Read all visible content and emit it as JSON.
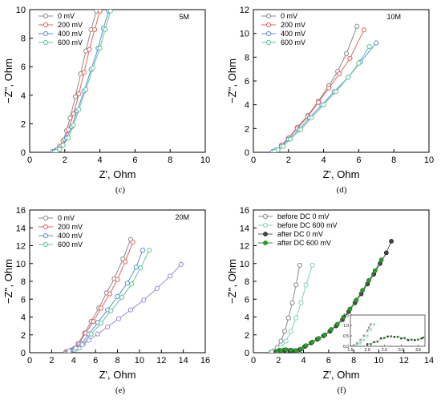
{
  "chart_data": [
    {
      "type": "line",
      "caption": "(c)",
      "annotation": "5M",
      "xlabel": "Z', Ohm",
      "ylabel": "−Z'', Ohm",
      "xlim": [
        0,
        10
      ],
      "ylim": [
        0,
        10
      ],
      "xticks": [
        "0",
        "2",
        "4",
        "6",
        "8",
        "10"
      ],
      "yticks": [
        "0",
        "2",
        "4",
        "6",
        "8",
        "10"
      ],
      "legend_position": "top-left",
      "series": [
        {
          "name": "0 mV",
          "color": "#8a8a8a",
          "marker": "open-circle",
          "x": [
            1.3,
            1.5,
            1.7,
            1.9,
            2.1,
            2.3,
            2.6,
            2.9,
            3.2,
            3.5,
            3.8
          ],
          "y": [
            0.05,
            0.15,
            0.4,
            0.8,
            1.5,
            2.4,
            3.9,
            5.5,
            7.1,
            8.6,
            9.9
          ]
        },
        {
          "name": "200 mV",
          "color": "#e8605a",
          "marker": "open-circle",
          "x": [
            1.4,
            1.6,
            1.8,
            2.0,
            2.2,
            2.5,
            2.8,
            3.1,
            3.4,
            3.7,
            4.0
          ],
          "y": [
            0.05,
            0.15,
            0.45,
            0.9,
            1.6,
            2.7,
            4.1,
            5.6,
            7.2,
            8.6,
            9.9
          ]
        },
        {
          "name": "400 mV",
          "color": "#5b8fd6",
          "marker": "open-circle",
          "x": [
            1.4,
            1.6,
            1.9,
            2.1,
            2.4,
            2.7,
            3.1,
            3.5,
            3.9,
            4.2,
            4.5
          ],
          "y": [
            0.05,
            0.2,
            0.5,
            1.0,
            1.8,
            2.9,
            4.3,
            5.8,
            7.3,
            8.7,
            9.9
          ]
        },
        {
          "name": "600 mV",
          "color": "#5ec79a",
          "marker": "open-circle",
          "x": [
            1.5,
            1.7,
            1.9,
            2.2,
            2.5,
            2.8,
            3.2,
            3.6,
            4.0,
            4.3,
            4.6
          ],
          "y": [
            0.05,
            0.2,
            0.5,
            1.0,
            1.9,
            3.0,
            4.4,
            5.9,
            7.3,
            8.6,
            9.9
          ]
        }
      ]
    },
    {
      "type": "line",
      "caption": "(d)",
      "annotation": "10M",
      "xlabel": "Z', Ohm",
      "ylabel": "−Z'', Ohm",
      "xlim": [
        0,
        10
      ],
      "ylim": [
        0,
        12
      ],
      "xticks": [
        "0",
        "2",
        "4",
        "6",
        "8",
        "10"
      ],
      "yticks": [
        "0",
        "2",
        "4",
        "6",
        "8",
        "10",
        "12"
      ],
      "legend_position": "top-left",
      "series": [
        {
          "name": "0 mV",
          "color": "#8a8a8a",
          "marker": "open-circle",
          "x": [
            1.1,
            1.3,
            1.6,
            2.0,
            2.5,
            3.1,
            3.7,
            4.3,
            4.8,
            5.3,
            5.9
          ],
          "y": [
            0.05,
            0.2,
            0.6,
            1.2,
            2.1,
            3.1,
            4.3,
            5.6,
            6.8,
            8.3,
            10.6
          ]
        },
        {
          "name": "200 mV",
          "color": "#e8605a",
          "marker": "open-circle",
          "x": [
            1.1,
            1.3,
            1.6,
            2.0,
            2.5,
            3.1,
            3.7,
            4.3,
            4.9,
            5.5,
            6.3
          ],
          "y": [
            0.05,
            0.2,
            0.6,
            1.2,
            2.0,
            3.0,
            4.2,
            5.4,
            6.6,
            7.9,
            10.3
          ]
        },
        {
          "name": "400 mV",
          "color": "#5b8fd6",
          "marker": "open-circle",
          "x": [
            1.1,
            1.3,
            1.6,
            2.0,
            2.6,
            3.2,
            3.9,
            4.6,
            5.4,
            6.1,
            7.0
          ],
          "y": [
            0.05,
            0.2,
            0.5,
            1.1,
            1.9,
            2.9,
            4.0,
            5.1,
            6.3,
            7.6,
            9.2
          ]
        },
        {
          "name": "600 mV",
          "color": "#5ec79a",
          "marker": "open-circle",
          "x": [
            1.2,
            1.4,
            1.7,
            2.1,
            2.7,
            3.3,
            4.0,
            4.7,
            5.4,
            6.0,
            6.6
          ],
          "y": [
            0.05,
            0.2,
            0.5,
            1.1,
            1.9,
            2.9,
            4.0,
            5.1,
            6.3,
            7.5,
            8.9
          ]
        }
      ]
    },
    {
      "type": "line",
      "caption": "(e)",
      "annotation": "20M",
      "xlabel": "Z', Ohm",
      "ylabel": "−Z'', Ohm",
      "xlim": [
        0,
        16
      ],
      "ylim": [
        0,
        16
      ],
      "xticks": [
        "0",
        "2",
        "4",
        "6",
        "8",
        "10",
        "12",
        "14",
        "16"
      ],
      "yticks": [
        "0",
        "2",
        "4",
        "6",
        "8",
        "10",
        "12",
        "14",
        "16"
      ],
      "legend_position": "top-left",
      "series": [
        {
          "name": "0 mV",
          "color": "#8a8a8a",
          "marker": "open-circle",
          "x": [
            3.3,
            3.8,
            4.1,
            4.4,
            5.0,
            5.6,
            6.3,
            7.0,
            7.7,
            8.5,
            9.2
          ],
          "y": [
            0.1,
            0.3,
            0.5,
            1.0,
            2.2,
            3.5,
            5.0,
            6.7,
            8.3,
            10.5,
            12.7
          ]
        },
        {
          "name": "200 mV",
          "color": "#e8605a",
          "marker": "open-circle",
          "x": [
            3.4,
            3.9,
            4.2,
            4.5,
            5.1,
            5.8,
            6.5,
            7.3,
            8.0,
            8.7,
            9.4
          ],
          "y": [
            0.1,
            0.3,
            0.5,
            1.0,
            2.2,
            3.5,
            5.0,
            6.6,
            8.2,
            10.2,
            12.4
          ]
        },
        {
          "name": "400 mV",
          "color": "#5b8fd6",
          "marker": "open-circle",
          "x": [
            3.5,
            4.0,
            4.3,
            4.7,
            5.4,
            6.2,
            7.1,
            8.0,
            8.9,
            9.7,
            10.3
          ],
          "y": [
            0.1,
            0.3,
            0.5,
            1.0,
            2.1,
            3.4,
            4.8,
            6.3,
            7.8,
            9.6,
            11.5
          ]
        },
        {
          "name": "600 mV",
          "color": "#5ec79a",
          "marker": "open-circle",
          "x": [
            3.6,
            4.1,
            4.5,
            4.9,
            5.6,
            6.5,
            7.4,
            8.4,
            9.3,
            10.1,
            10.9
          ],
          "y": [
            0.1,
            0.3,
            0.5,
            1.0,
            2.1,
            3.3,
            4.7,
            6.2,
            7.7,
            9.5,
            11.5
          ]
        },
        {
          "name": "",
          "color": "#9a86d8",
          "marker": "open-circle",
          "x": [
            3.6,
            4.2,
            4.8,
            5.4,
            6.2,
            7.1,
            8.1,
            9.2,
            10.4,
            11.6,
            12.8,
            13.8
          ],
          "y": [
            0.2,
            0.5,
            0.9,
            1.4,
            2.1,
            2.9,
            3.8,
            4.8,
            5.9,
            7.2,
            8.6,
            9.9
          ]
        }
      ]
    },
    {
      "type": "line",
      "caption": "(f)",
      "xlabel": "Z', Ohm",
      "ylabel": "−Z'', Ohm",
      "xlim": [
        0,
        14
      ],
      "ylim": [
        0,
        16
      ],
      "xticks": [
        "0",
        "2",
        "4",
        "6",
        "8",
        "10",
        "12",
        "14"
      ],
      "yticks": [
        "0",
        "2",
        "4",
        "6",
        "8",
        "10",
        "12",
        "14",
        "16"
      ],
      "legend_position": "top-left",
      "series": [
        {
          "name": "before DC 0 mV",
          "color": "#8a8a8a",
          "marker": "open-circle",
          "x": [
            1.4,
            1.6,
            1.9,
            2.2,
            2.5,
            2.8,
            3.1,
            3.4,
            3.7
          ],
          "y": [
            0.05,
            0.2,
            0.6,
            1.3,
            2.4,
            3.9,
            5.6,
            7.6,
            9.8
          ]
        },
        {
          "name": "before DC 600 mV",
          "color": "#7fd3b0",
          "marker": "open-circle",
          "x": [
            1.5,
            1.8,
            2.2,
            2.6,
            3.0,
            3.4,
            3.8,
            4.2,
            4.7
          ],
          "y": [
            0.05,
            0.2,
            0.6,
            1.3,
            2.4,
            3.9,
            5.6,
            7.6,
            9.8
          ]
        },
        {
          "name": "after DC 0 mV",
          "color": "#555555",
          "marker": "filled-dark-circle",
          "x": [
            1.8,
            2.1,
            2.5,
            2.9,
            3.3,
            3.7,
            4.1,
            4.6,
            5.1,
            5.6,
            6.1,
            6.6,
            7.1,
            7.6,
            8.1,
            8.6,
            9.1,
            9.6,
            10.1,
            10.6,
            11.0
          ],
          "y": [
            0.1,
            0.25,
            0.3,
            0.25,
            0.2,
            0.35,
            0.7,
            1.1,
            1.5,
            1.9,
            2.4,
            3.0,
            3.7,
            4.6,
            5.6,
            6.6,
            7.7,
            8.8,
            10.0,
            11.2,
            12.5
          ]
        },
        {
          "name": "after DC 600 mV",
          "color": "#2aa02a",
          "marker": "filled-green-circle",
          "x": [
            1.9,
            2.2,
            2.6,
            3.0,
            3.4,
            3.8,
            4.2,
            4.7,
            5.2,
            5.7,
            6.2,
            6.7,
            7.2,
            7.7,
            8.2,
            8.7,
            9.2,
            9.7,
            10.2
          ],
          "y": [
            0.1,
            0.25,
            0.35,
            0.3,
            0.25,
            0.4,
            0.8,
            1.2,
            1.6,
            2.0,
            2.6,
            3.2,
            4.0,
            4.9,
            5.9,
            7.0,
            8.1,
            9.2,
            10.4
          ]
        }
      ],
      "inset": {
        "xlim": [
          1.5,
          3.7
        ],
        "ylim": [
          0,
          1.5
        ],
        "xticks": [
          "1.5",
          "2.0",
          "2.5",
          "3.0",
          "3.5"
        ],
        "yticks": [
          "0.0",
          "0.5",
          "1.0",
          "1.5"
        ],
        "series": [
          {
            "color": "#8a8a8a",
            "marker": "open-circle",
            "x": [
              1.6,
              1.7,
              1.8,
              1.9,
              2.0,
              2.05,
              2.1
            ],
            "y": [
              0.05,
              0.15,
              0.3,
              0.5,
              0.75,
              0.9,
              1.05
            ]
          },
          {
            "color": "#7fd3b0",
            "marker": "open-circle",
            "x": [
              1.7,
              1.8,
              1.9,
              2.0,
              2.1,
              2.2
            ],
            "y": [
              0.05,
              0.15,
              0.3,
              0.5,
              0.8,
              1.05
            ]
          },
          {
            "color": "#555555",
            "marker": "filled-dark-circle",
            "x": [
              2.0,
              2.2,
              2.4,
              2.6,
              2.8,
              3.0,
              3.2,
              3.4,
              3.6
            ],
            "y": [
              0.1,
              0.2,
              0.38,
              0.47,
              0.45,
              0.38,
              0.3,
              0.3,
              0.38
            ]
          },
          {
            "color": "#2aa02a",
            "marker": "filled-green-circle",
            "x": [
              2.1,
              2.3,
              2.5,
              2.7,
              2.9,
              3.1,
              3.3,
              3.5,
              3.65
            ],
            "y": [
              0.1,
              0.22,
              0.4,
              0.48,
              0.46,
              0.4,
              0.32,
              0.32,
              0.42
            ]
          }
        ]
      }
    }
  ]
}
